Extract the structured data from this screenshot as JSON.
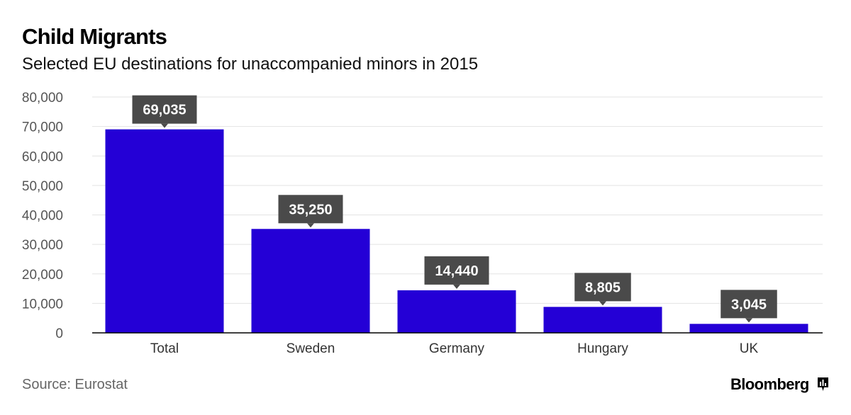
{
  "header": {
    "title": "Child Migrants",
    "subtitle": "Selected EU destinations for unaccompanied minors in 2015"
  },
  "footer": {
    "source": "Source: Eurostat",
    "brand": "Bloomberg",
    "brand_icon": "bloomberg-logo-icon"
  },
  "colors": {
    "bar": "#2400d6",
    "label_bg": "#4a4a4a",
    "label_text": "#ffffff",
    "grid": "#e3e3e3",
    "axis": "#000000",
    "tick_text": "#555555"
  },
  "chart_data": {
    "type": "bar",
    "title": "Child Migrants",
    "subtitle": "Selected EU destinations for unaccompanied minors in 2015",
    "categories": [
      "Total",
      "Sweden",
      "Germany",
      "Hungary",
      "UK"
    ],
    "values": [
      69035,
      35250,
      14440,
      8805,
      3045
    ],
    "value_labels": [
      "69,035",
      "35,250",
      "14,440",
      "8,805",
      "3,045"
    ],
    "y_ticks": [
      "0",
      "10,000",
      "20,000",
      "30,000",
      "40,000",
      "50,000",
      "60,000",
      "70,000",
      "80,000"
    ],
    "ylim": [
      0,
      80000
    ],
    "grid": true,
    "legend": "none"
  }
}
